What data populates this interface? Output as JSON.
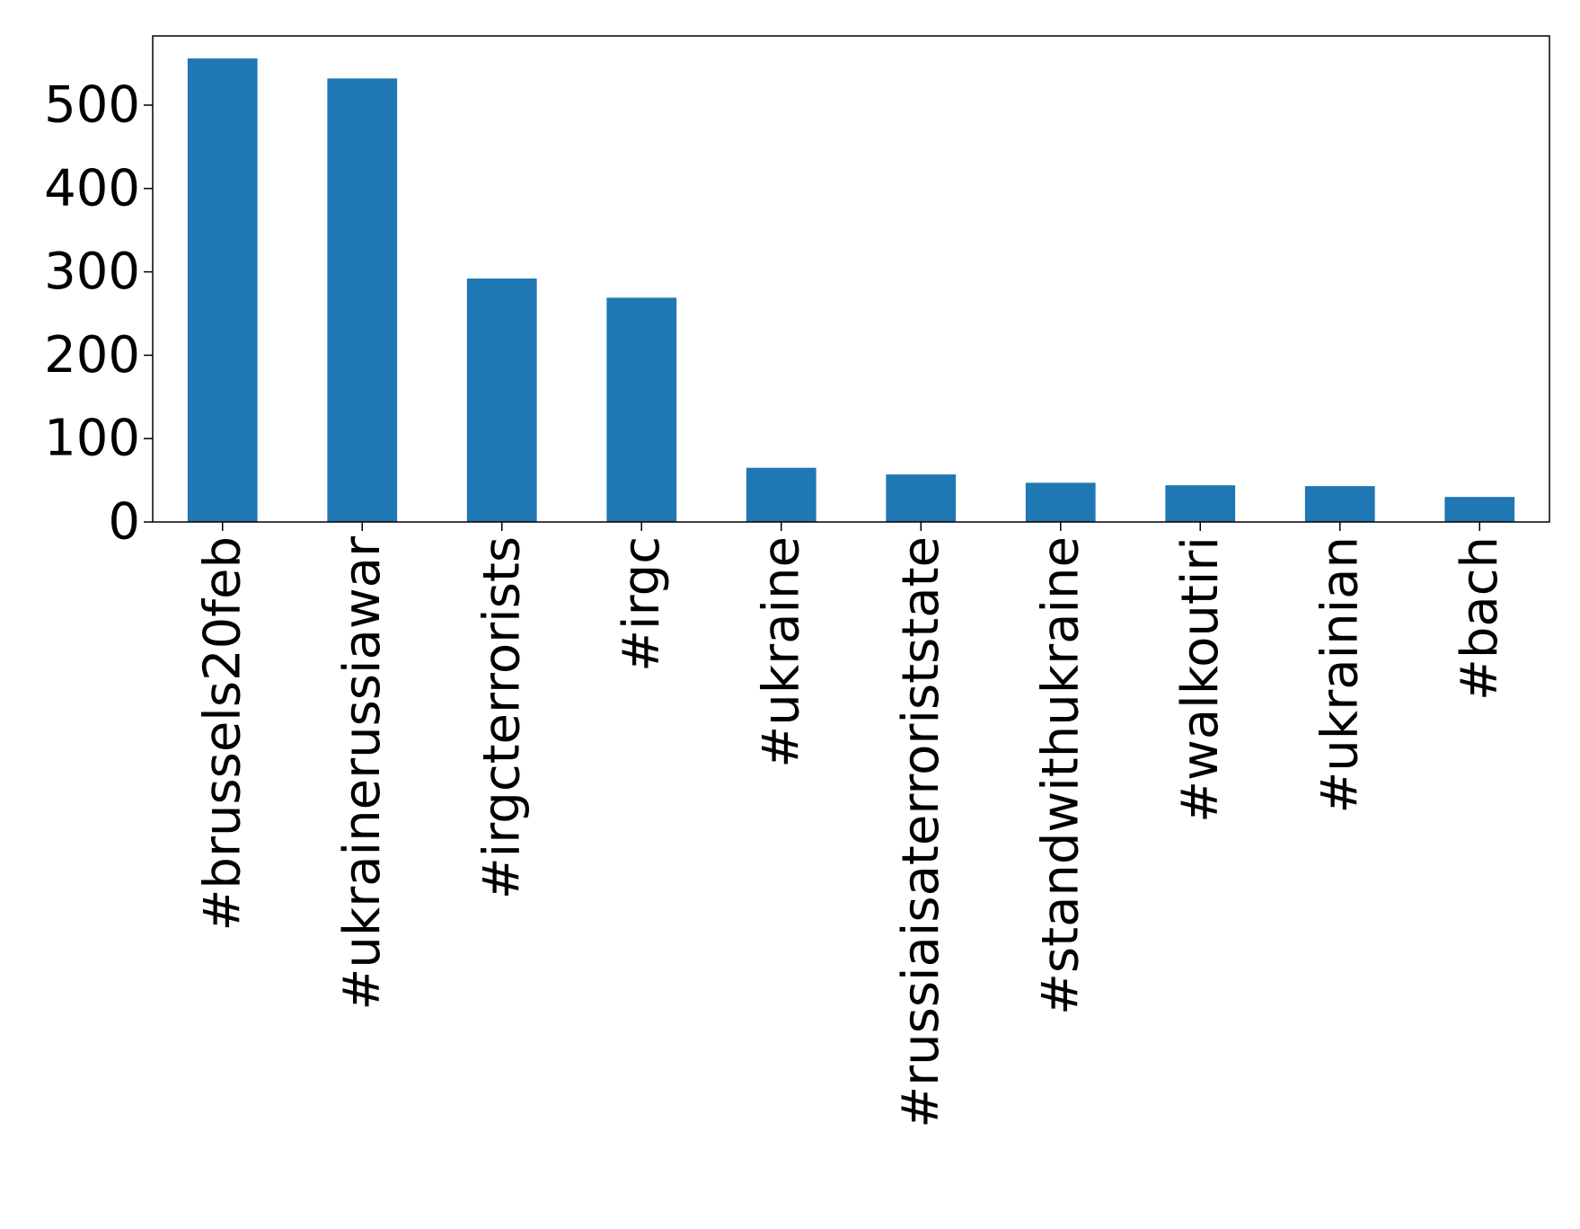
{
  "chart_data": {
    "type": "bar",
    "title": "",
    "xlabel": "",
    "ylabel": "",
    "categories": [
      "#brussels20feb",
      "#ukrainerussiawar",
      "#irgcterrorists",
      "#irgc",
      "#ukraine",
      "#russiaisaterroriststate",
      "#standwithukraine",
      "#walkoutiri",
      "#ukrainian",
      "#bach"
    ],
    "values": [
      556,
      532,
      292,
      269,
      65,
      57,
      47,
      44,
      43,
      30
    ],
    "ylim": [
      0,
      583
    ],
    "yticks": [
      0,
      100,
      200,
      300,
      400,
      500
    ],
    "grid": false,
    "legend": "none",
    "colors": {
      "bar": "#1f77b4",
      "axes": "#000000",
      "background": "#ffffff"
    }
  }
}
